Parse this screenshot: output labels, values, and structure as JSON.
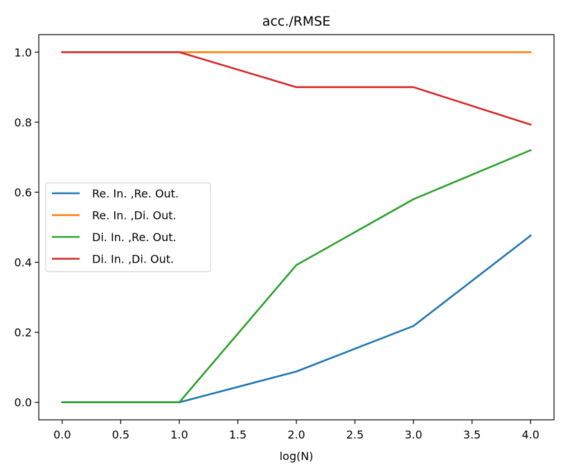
{
  "chart_data": {
    "type": "line",
    "title": "acc./RMSE",
    "xlabel": "log(N)",
    "ylabel": "",
    "xlim": [
      -0.2,
      4.2
    ],
    "ylim": [
      -0.05,
      1.05
    ],
    "xticks": [
      0.0,
      0.5,
      1.0,
      1.5,
      2.0,
      2.5,
      3.0,
      3.5,
      4.0
    ],
    "xtick_labels": [
      "0.0",
      "0.5",
      "1.0",
      "1.5",
      "2.0",
      "2.5",
      "3.0",
      "3.5",
      "4.0"
    ],
    "yticks": [
      0.0,
      0.2,
      0.4,
      0.6,
      0.8,
      1.0
    ],
    "ytick_labels": [
      "0.0",
      "0.2",
      "0.4",
      "0.6",
      "0.8",
      "1.0"
    ],
    "grid": false,
    "legend_position": "center-left",
    "x": [
      0,
      1,
      2,
      3,
      4
    ],
    "series": [
      {
        "name": "Re. In. ,Re. Out.",
        "color": "#1f77b4",
        "values": [
          0.0,
          0.0,
          0.088,
          0.218,
          0.476
        ]
      },
      {
        "name": "Re. In. ,Di. Out.",
        "color": "#ff7f0e",
        "values": [
          1.0,
          1.0,
          1.0,
          1.0,
          1.0
        ]
      },
      {
        "name": "Di. In. ,Re. Out.",
        "color": "#2ca02c",
        "values": [
          0.0,
          0.0,
          0.392,
          0.58,
          0.72
        ]
      },
      {
        "name": "Di. In. ,Di. Out.",
        "color": "#d62728",
        "values": [
          1.0,
          1.0,
          0.9,
          0.9,
          0.793
        ]
      }
    ]
  }
}
